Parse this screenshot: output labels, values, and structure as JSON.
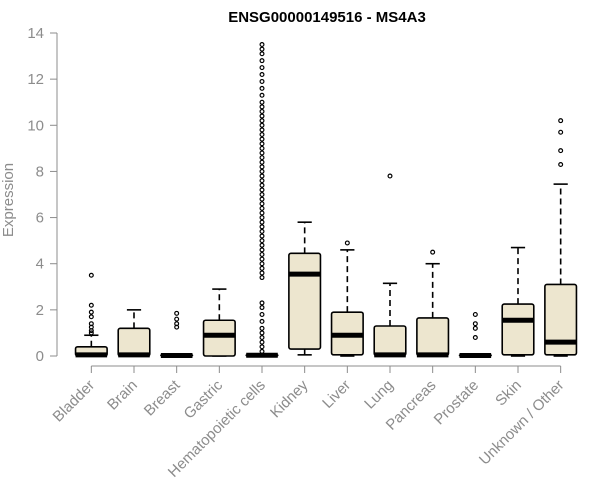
{
  "chart_data": {
    "type": "box",
    "title": "ENSG00000149516 - MS4A3",
    "ylabel": "Expression",
    "xlabel": "",
    "ylim": [
      0,
      14
    ],
    "yticks": [
      0,
      2,
      4,
      6,
      8,
      10,
      12,
      14
    ],
    "box_fill": "#ede6cf",
    "categories": [
      "Bladder",
      "Brain",
      "Breast",
      "Gastric",
      "Hematopoietic cells",
      "Kidney",
      "Liver",
      "Lung",
      "Pancreas",
      "Prostate",
      "Skin",
      "Unknown / Other"
    ],
    "boxes": [
      {
        "q1": 0,
        "median": 0.05,
        "q3": 0.4,
        "whisker_low": 0,
        "whisker_high": 0.9,
        "outliers": [
          1.0,
          1.1,
          1.25,
          1.4,
          1.7,
          1.9,
          2.2,
          3.5
        ]
      },
      {
        "q1": 0,
        "median": 0.05,
        "q3": 1.2,
        "whisker_low": 0,
        "whisker_high": 2.0,
        "outliers": []
      },
      {
        "q1": 0,
        "median": 0.02,
        "q3": 0.05,
        "whisker_low": 0,
        "whisker_high": 0.05,
        "outliers": [
          1.25,
          1.4,
          1.6,
          1.85
        ]
      },
      {
        "q1": 0,
        "median": 0.9,
        "q3": 1.55,
        "whisker_low": 0,
        "whisker_high": 2.9,
        "outliers": []
      },
      {
        "q1": 0,
        "median": 0.03,
        "q3": 0.06,
        "whisker_low": 0,
        "whisker_high": 0.06,
        "outliers": [
          0.2,
          0.4,
          0.6,
          0.8,
          1.0,
          1.2,
          1.5,
          1.8,
          2.1,
          2.3,
          3.4,
          3.6,
          3.8,
          4.0,
          4.2,
          4.4,
          4.6,
          4.8,
          5.0,
          5.2,
          5.4,
          5.6,
          5.8,
          6.0,
          6.2,
          6.4,
          6.6,
          6.8,
          7.0,
          7.2,
          7.4,
          7.6,
          7.8,
          8.0,
          8.2,
          8.4,
          8.6,
          8.8,
          9.0,
          9.2,
          9.4,
          9.6,
          9.8,
          10.0,
          10.2,
          10.4,
          10.6,
          10.8,
          11.0,
          11.3,
          11.6,
          11.9,
          12.2,
          12.5,
          12.8,
          13.1,
          13.3,
          13.5
        ]
      },
      {
        "q1": 0.3,
        "median": 3.55,
        "q3": 4.45,
        "whisker_low": 0.05,
        "whisker_high": 5.8,
        "outliers": []
      },
      {
        "q1": 0.05,
        "median": 0.9,
        "q3": 1.9,
        "whisker_low": 0,
        "whisker_high": 4.6,
        "outliers": [
          4.9
        ]
      },
      {
        "q1": 0.02,
        "median": 0.05,
        "q3": 1.3,
        "whisker_low": 0,
        "whisker_high": 3.15,
        "outliers": [
          7.8
        ]
      },
      {
        "q1": 0.02,
        "median": 0.05,
        "q3": 1.65,
        "whisker_low": 0,
        "whisker_high": 4.0,
        "outliers": [
          4.5
        ]
      },
      {
        "q1": 0,
        "median": 0.02,
        "q3": 0.05,
        "whisker_low": 0,
        "whisker_high": 0.05,
        "outliers": [
          0.8,
          1.2,
          1.4,
          1.8
        ]
      },
      {
        "q1": 0.05,
        "median": 1.55,
        "q3": 2.25,
        "whisker_low": 0,
        "whisker_high": 4.7,
        "outliers": []
      },
      {
        "q1": 0.05,
        "median": 0.6,
        "q3": 3.1,
        "whisker_low": 0,
        "whisker_high": 7.45,
        "outliers": [
          8.3,
          8.9,
          9.7,
          10.2
        ]
      }
    ]
  }
}
